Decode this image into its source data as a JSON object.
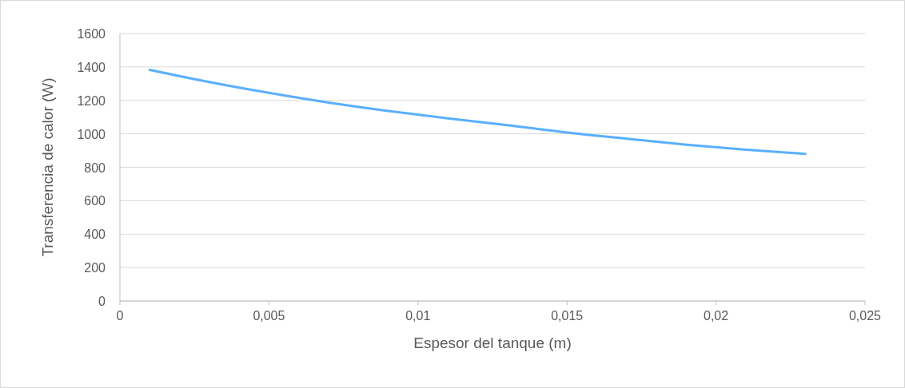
{
  "chart_data": {
    "type": "line",
    "xlabel": "Espesor del tanque (m)",
    "ylabel": "Transferencia de calor (W)",
    "series": [
      {
        "color": "#5aafff",
        "x": [
          0.001,
          0.003,
          0.005,
          0.007,
          0.009,
          0.011,
          0.013,
          0.015,
          0.017,
          0.019,
          0.021,
          0.023
        ],
        "values": [
          1383,
          1310,
          1245,
          1187,
          1137,
          1093,
          1052,
          1008,
          971,
          935,
          905,
          880
        ]
      }
    ],
    "xlim": [
      0,
      0.025
    ],
    "xticks": [
      0,
      {
        "value": 0.005,
        "label": "0,005"
      },
      {
        "value": 0.01,
        "label": "0,01"
      },
      {
        "value": 0.015,
        "label": "0,015"
      },
      {
        "value": 0.02,
        "label": "0,02"
      },
      {
        "value": 0.025,
        "label": "0,025"
      }
    ],
    "ylim": [
      0,
      1600
    ],
    "yticks": [
      0,
      200,
      400,
      600,
      800,
      1000,
      1200,
      1400,
      1600
    ],
    "grid": "y",
    "marker": "none",
    "line_style": "solid"
  }
}
